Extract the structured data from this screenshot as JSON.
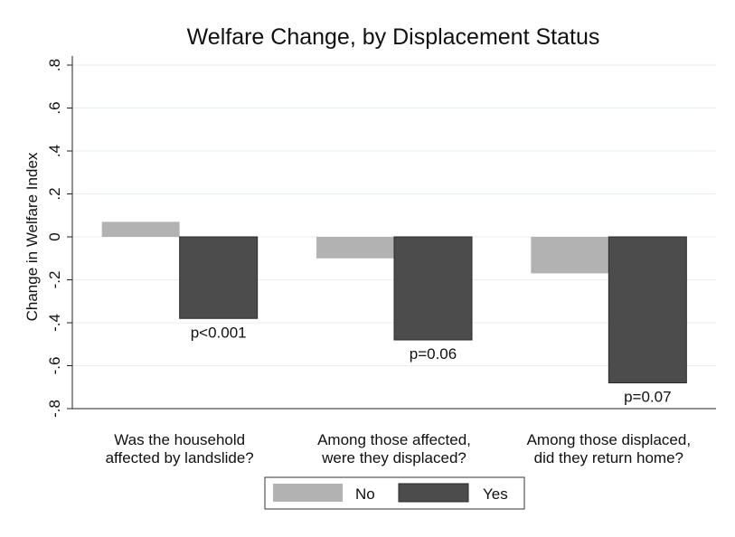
{
  "chart_data": {
    "type": "bar",
    "title": "Welfare Change, by Displacement Status",
    "xlabel": "",
    "ylabel": "Change in Welfare Index",
    "ylim": [
      -0.8,
      0.8
    ],
    "yticks": [
      -0.8,
      -0.6,
      -0.4,
      -0.2,
      0,
      0.2,
      0.4,
      0.6,
      0.8
    ],
    "ytick_labels": [
      "-.8",
      "-.6",
      "-.4",
      "-.2",
      "0",
      ".2",
      ".4",
      ".6",
      ".8"
    ],
    "grid": true,
    "categories": [
      [
        "Was the household",
        "affected by landslide?"
      ],
      [
        "Among those affected,",
        "were they displaced?"
      ],
      [
        "Among those displaced,",
        "did they return home?"
      ]
    ],
    "series": [
      {
        "name": "No",
        "color": "#b2b2b2",
        "values": [
          0.07,
          -0.1,
          -0.17
        ]
      },
      {
        "name": "Yes",
        "color": "#4c4c4c",
        "values": [
          -0.38,
          -0.48,
          -0.68
        ]
      }
    ],
    "annotations": [
      "p<0.001",
      "p=0.06",
      "p=0.07"
    ],
    "legend_position": "bottom"
  }
}
